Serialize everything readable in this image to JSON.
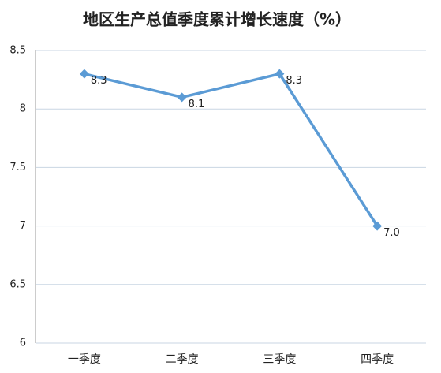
{
  "chart_data": {
    "type": "line",
    "title": "地区生产总值季度累计增长速度（%）",
    "categories": [
      "一季度",
      "二季度",
      "三季度",
      "四季度"
    ],
    "values": [
      8.3,
      8.1,
      8.3,
      7.0
    ],
    "value_labels": [
      "8.3",
      "8.1",
      "8.3",
      "7.0"
    ],
    "color": "#5b9bd5",
    "ylim": [
      6,
      8.5
    ],
    "yticks": [
      6,
      6.5,
      7,
      7.5,
      8,
      8.5
    ],
    "grid": true
  }
}
